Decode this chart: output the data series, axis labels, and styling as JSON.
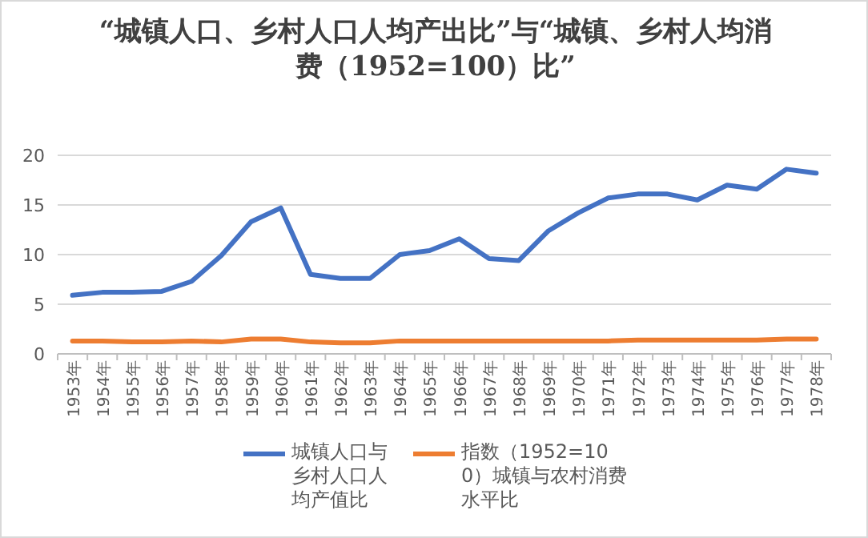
{
  "chart_data": {
    "type": "line",
    "title": "“城镇人口、乡村人口人均产出比”与“城镇、乡村人均消费（1952=100）比”",
    "categories": [
      "1953年",
      "1954年",
      "1955年",
      "1956年",
      "1957年",
      "1958年",
      "1959年",
      "1960年",
      "1961年",
      "1962年",
      "1963年",
      "1964年",
      "1965年",
      "1966年",
      "1967年",
      "1968年",
      "1969年",
      "1970年",
      "1971年",
      "1972年",
      "1973年",
      "1974年",
      "1975年",
      "1976年",
      "1977年",
      "1978年"
    ],
    "series": [
      {
        "name": "城镇人口与乡村人口人均产值比",
        "color": "#4472c4",
        "values": [
          5.9,
          6.2,
          6.2,
          6.3,
          7.3,
          9.9,
          13.3,
          14.7,
          8.0,
          7.6,
          7.6,
          10.0,
          10.4,
          11.6,
          9.6,
          9.4,
          12.4,
          14.2,
          15.7,
          16.1,
          16.1,
          15.5,
          17.0,
          16.6,
          18.6,
          18.2
        ]
      },
      {
        "name": "指数（1952=100）城镇与农村消费水平比",
        "color": "#ed7d31",
        "values": [
          1.3,
          1.3,
          1.2,
          1.2,
          1.3,
          1.2,
          1.5,
          1.5,
          1.2,
          1.1,
          1.1,
          1.3,
          1.3,
          1.3,
          1.3,
          1.3,
          1.3,
          1.3,
          1.3,
          1.4,
          1.4,
          1.4,
          1.4,
          1.4,
          1.5,
          1.5
        ]
      }
    ],
    "ylim": [
      0,
      20
    ],
    "yticks": [
      0,
      5,
      10,
      15,
      20
    ],
    "grid": "y",
    "legend": "bottom"
  }
}
